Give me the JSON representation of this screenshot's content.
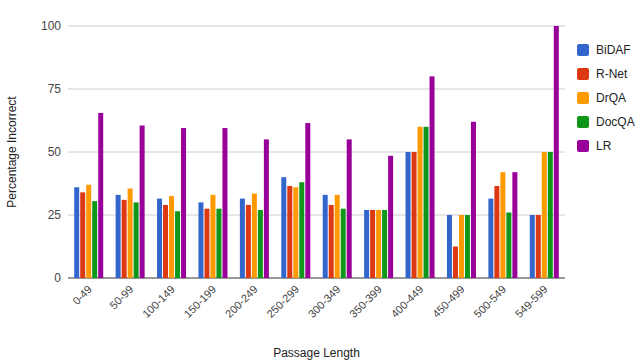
{
  "chart_data": {
    "type": "bar",
    "x_label": "Passage Length",
    "y_label": "Percentage Incorrect",
    "categories": [
      "0-49",
      "50-99",
      "100-149",
      "150-199",
      "200-249",
      "250-299",
      "300-349",
      "350-399",
      "400-449",
      "450-499",
      "500-549",
      "549-599"
    ],
    "series": [
      {
        "name": "BiDAF",
        "color": "#3366cc",
        "values": [
          36,
          33,
          31.5,
          30,
          31.5,
          40,
          33,
          27,
          50,
          25,
          31.5,
          25
        ]
      },
      {
        "name": "R-Net",
        "color": "#dc3912",
        "values": [
          34,
          31,
          29,
          27.5,
          29,
          36.5,
          29,
          27,
          50,
          12.5,
          36.5,
          25
        ]
      },
      {
        "name": "DrQA",
        "color": "#ff9900",
        "values": [
          37,
          35.5,
          32.5,
          33,
          33.5,
          36,
          33,
          27,
          60,
          25,
          42,
          50
        ]
      },
      {
        "name": "DocQA",
        "color": "#109618",
        "values": [
          30.5,
          30,
          26.5,
          27.5,
          27,
          38,
          27.5,
          27,
          60,
          25,
          26,
          50
        ]
      },
      {
        "name": "LR",
        "color": "#990099",
        "values": [
          65.5,
          60.5,
          59.5,
          59.5,
          55,
          61.5,
          55,
          48.5,
          80,
          62,
          42,
          100
        ]
      }
    ],
    "ylim": [
      0,
      100
    ],
    "yticks": [
      0,
      25,
      50,
      75,
      100
    ],
    "grid": true,
    "legend": "right"
  }
}
